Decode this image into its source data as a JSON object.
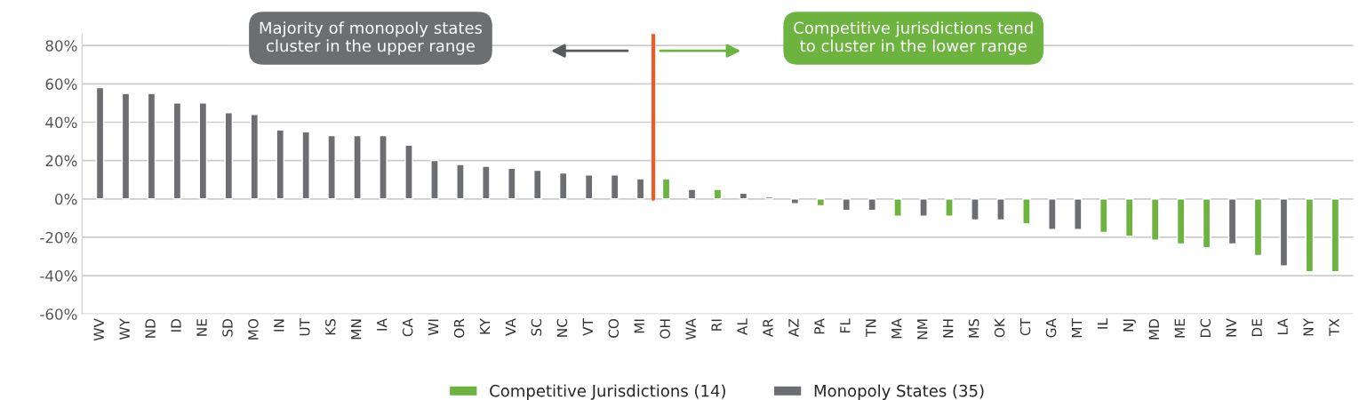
{
  "chart_data": {
    "type": "bar",
    "categories": [
      "WV",
      "WY",
      "ND",
      "ID",
      "NE",
      "SD",
      "MO",
      "IN",
      "UT",
      "KS",
      "MN",
      "IA",
      "CA",
      "WI",
      "OR",
      "KY",
      "VA",
      "SC",
      "NC",
      "VT",
      "CO",
      "MI",
      "OH",
      "WA",
      "RI",
      "AL",
      "AR",
      "AZ",
      "PA",
      "FL",
      "TN",
      "MA",
      "NM",
      "NH",
      "MS",
      "OK",
      "CT",
      "GA",
      "MT",
      "IL",
      "NJ",
      "MD",
      "ME",
      "DC",
      "NV",
      "DE",
      "LA",
      "NY",
      "TX"
    ],
    "series": [
      {
        "name": "Competitive Jurisdictions (14)",
        "color": "#6db33f",
        "values": [
          null,
          null,
          null,
          null,
          null,
          null,
          null,
          null,
          null,
          null,
          null,
          null,
          null,
          null,
          null,
          null,
          null,
          null,
          null,
          null,
          null,
          null,
          10.5,
          null,
          5,
          null,
          null,
          null,
          -3.5,
          null,
          null,
          -9,
          null,
          -9,
          null,
          null,
          -13,
          null,
          null,
          -17.5,
          -19.5,
          -21.5,
          -23.5,
          -25.5,
          null,
          -29.5,
          null,
          -38,
          -38
        ]
      },
      {
        "name": "Monopoly States (35)",
        "color": "#6d6e71",
        "values": [
          58,
          55,
          55,
          50,
          50,
          45,
          44,
          36,
          35,
          33,
          33,
          33,
          28,
          20,
          18,
          17,
          16,
          15,
          13.5,
          12.5,
          12.5,
          10.5,
          null,
          5,
          null,
          3,
          1,
          -2.5,
          null,
          -6,
          -6,
          null,
          -9,
          null,
          -11,
          -11,
          null,
          -16,
          -16,
          null,
          null,
          null,
          null,
          null,
          -23.5,
          null,
          -35,
          null,
          null
        ]
      }
    ],
    "ylim": [
      -60,
      86
    ],
    "yticks": [
      {
        "value": -60,
        "label": "-60%"
      },
      {
        "value": -40,
        "label": "-40%"
      },
      {
        "value": -20,
        "label": "-20%"
      },
      {
        "value": 0,
        "label": "0%"
      },
      {
        "value": 20,
        "label": "20%"
      },
      {
        "value": 40,
        "label": "40%"
      },
      {
        "value": 60,
        "label": "60%"
      },
      {
        "value": 80,
        "label": "80%"
      }
    ],
    "grid": "y",
    "legend": "bottom",
    "annotations": [
      "Majority of monopoly states\ncluster in the upper range",
      "Competitive jurisdictions tend\nto cluster in the lower range"
    ]
  }
}
